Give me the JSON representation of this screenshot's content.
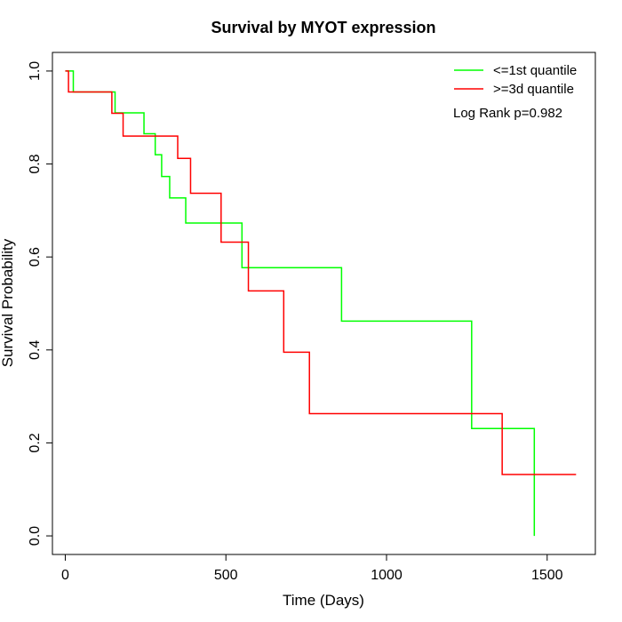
{
  "chart_data": {
    "type": "line",
    "title": "Survival by MYOT expression",
    "xlabel": "Time (Days)",
    "ylabel": "Survival Probability",
    "xlim": [
      -40,
      1650
    ],
    "ylim": [
      -0.04,
      1.04
    ],
    "xticks": [
      0,
      500,
      1000,
      1500
    ],
    "xtick_labels": [
      "0",
      "500",
      "1000",
      "1500"
    ],
    "yticks": [
      0,
      0.2,
      0.4,
      0.6,
      0.8,
      1.0
    ],
    "ytick_labels": [
      "0.0",
      "0.2",
      "0.4",
      "0.6",
      "0.8",
      "1.0"
    ],
    "legend_position": "top-right",
    "annotation": "Log Rank p=0.982",
    "series": [
      {
        "name": "<=1st quantile",
        "color": "#00ff00",
        "step": "post",
        "x": [
          0,
          25,
          155,
          245,
          280,
          300,
          325,
          375,
          550,
          860,
          1265,
          1460
        ],
        "y": [
          1.0,
          0.955,
          0.91,
          0.865,
          0.82,
          0.773,
          0.727,
          0.673,
          0.577,
          0.462,
          0.231,
          0.0
        ]
      },
      {
        "name": ">=3d quantile",
        "color": "#ff0000",
        "step": "post",
        "x": [
          0,
          10,
          145,
          180,
          350,
          390,
          485,
          570,
          680,
          760,
          1360,
          1590
        ],
        "y": [
          1.0,
          0.955,
          0.909,
          0.86,
          0.812,
          0.737,
          0.632,
          0.527,
          0.395,
          0.263,
          0.132,
          0.132
        ]
      }
    ]
  }
}
